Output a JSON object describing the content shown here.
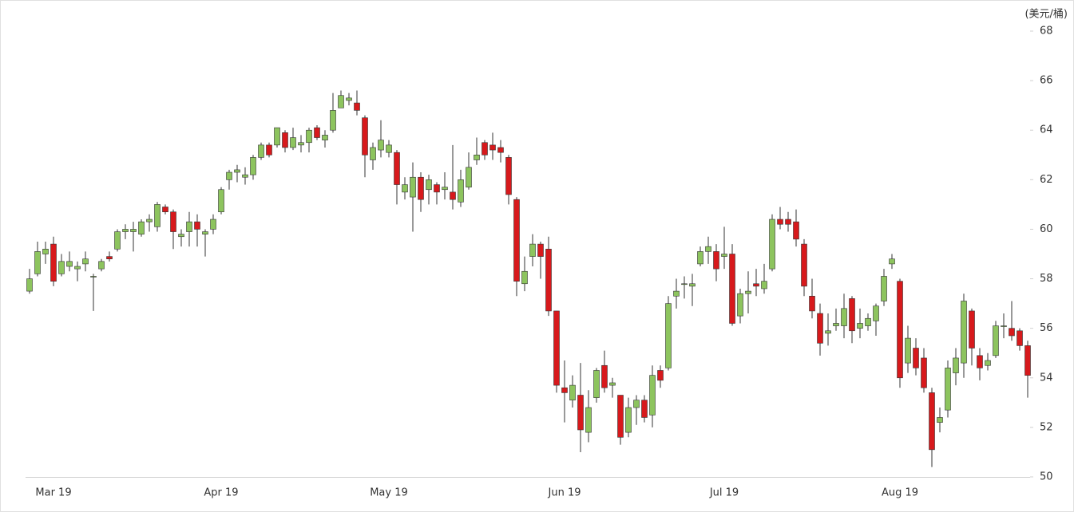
{
  "chart_data": {
    "type": "candlestick",
    "ylabel": "(美元/桶)",
    "categories": [
      null,
      null,
      null,
      "Mar 19",
      null,
      null,
      null,
      null,
      null,
      null,
      null,
      null,
      null,
      null,
      null,
      null,
      null,
      null,
      null,
      null,
      null,
      null,
      null,
      null,
      "Apr 19",
      null,
      null,
      null,
      null,
      null,
      null,
      null,
      null,
      null,
      null,
      null,
      null,
      null,
      null,
      null,
      null,
      null,
      null,
      null,
      null,
      "May 19",
      null,
      null,
      null,
      null,
      null,
      null,
      null,
      null,
      null,
      null,
      null,
      null,
      null,
      null,
      null,
      null,
      null,
      null,
      null,
      null,
      null,
      "Jun 19",
      null,
      null,
      null,
      null,
      null,
      null,
      null,
      null,
      null,
      null,
      null,
      null,
      null,
      null,
      null,
      null,
      null,
      null,
      null,
      "Jul 19",
      null,
      null,
      null,
      null,
      null,
      null,
      null,
      null,
      null,
      null,
      null,
      null,
      null,
      null,
      null,
      null,
      null,
      null,
      null,
      null,
      null,
      "Aug 19",
      null,
      null,
      null,
      null,
      null,
      null,
      null,
      null,
      null,
      null,
      null,
      null,
      null,
      null,
      null,
      null
    ],
    "open": [
      57.5,
      58.2,
      59.0,
      59.4,
      58.2,
      58.5,
      58.4,
      58.6,
      58.1,
      58.4,
      58.9,
      59.2,
      59.9,
      59.9,
      59.8,
      60.3,
      60.1,
      60.9,
      60.7,
      59.7,
      59.9,
      60.3,
      59.8,
      60.0,
      60.7,
      62.0,
      62.3,
      62.1,
      62.2,
      62.9,
      63.4,
      63.4,
      63.9,
      63.3,
      63.4,
      63.5,
      64.1,
      63.6,
      64.0,
      64.9,
      65.2,
      65.1,
      64.5,
      62.8,
      63.2,
      63.1,
      63.1,
      61.5,
      61.3,
      62.1,
      61.6,
      61.8,
      61.6,
      61.5,
      61.1,
      61.7,
      62.8,
      63.5,
      63.4,
      63.3,
      62.9,
      61.2,
      57.8,
      58.9,
      59.4,
      59.2,
      56.7,
      53.6,
      53.1,
      53.3,
      51.8,
      53.2,
      54.5,
      53.7,
      53.3,
      51.8,
      52.8,
      53.1,
      52.5,
      54.3,
      54.4,
      57.3,
      57.8,
      57.7,
      58.6,
      59.1,
      59.1,
      58.9,
      59.0,
      56.5,
      57.4,
      57.8,
      57.6,
      58.4,
      60.4,
      60.4,
      60.3,
      59.4,
      57.3,
      56.6,
      55.8,
      56.1,
      56.1,
      57.2,
      56.0,
      56.1,
      56.3,
      57.1,
      58.6,
      57.9,
      54.6,
      55.2,
      54.8,
      53.4,
      52.2,
      52.7,
      54.2,
      54.6,
      56.7,
      54.9,
      54.5,
      54.9,
      56.1,
      56.0,
      55.9,
      55.3
    ],
    "high": [
      58.4,
      59.5,
      59.5,
      59.7,
      59.0,
      59.1,
      58.7,
      59.1,
      58.2,
      58.8,
      59.1,
      60.0,
      60.2,
      60.3,
      60.4,
      60.6,
      61.1,
      61.0,
      60.8,
      60.0,
      60.7,
      60.6,
      60.0,
      60.6,
      61.7,
      62.4,
      62.6,
      62.5,
      63.0,
      63.5,
      63.5,
      64.1,
      64.0,
      64.1,
      63.8,
      64.1,
      64.2,
      64.0,
      65.5,
      65.6,
      65.5,
      65.6,
      64.6,
      63.5,
      64.4,
      63.6,
      63.2,
      62.1,
      62.7,
      62.3,
      62.2,
      61.9,
      62.3,
      63.4,
      62.4,
      63.1,
      63.7,
      63.6,
      63.9,
      63.6,
      63.0,
      61.3,
      58.9,
      59.8,
      59.5,
      59.7,
      56.7,
      54.7,
      54.1,
      54.6,
      53.5,
      54.4,
      55.1,
      54.0,
      53.3,
      53.2,
      53.3,
      53.3,
      54.5,
      54.5,
      57.3,
      58.0,
      58.1,
      58.2,
      59.3,
      59.7,
      59.4,
      60.1,
      59.4,
      57.6,
      58.3,
      58.4,
      58.6,
      60.6,
      60.9,
      60.7,
      60.8,
      59.6,
      58.0,
      57.0,
      56.6,
      56.8,
      57.4,
      57.3,
      56.8,
      56.6,
      57.0,
      58.4,
      59.0,
      58.0,
      56.1,
      55.6,
      55.2,
      53.6,
      52.8,
      54.7,
      55.2,
      57.4,
      56.8,
      55.2,
      55.0,
      56.3,
      56.6,
      57.1,
      56.0,
      55.5
    ],
    "low": [
      57.4,
      58.1,
      58.6,
      57.7,
      58.1,
      58.3,
      57.9,
      58.3,
      56.7,
      58.3,
      58.7,
      59.1,
      59.6,
      59.1,
      59.7,
      59.9,
      59.9,
      60.6,
      59.2,
      59.3,
      59.3,
      59.3,
      58.9,
      59.8,
      60.6,
      61.6,
      61.9,
      61.8,
      62.0,
      62.8,
      62.9,
      63.3,
      63.1,
      63.2,
      63.1,
      63.1,
      63.6,
      63.3,
      63.9,
      64.9,
      65.0,
      64.6,
      62.1,
      62.4,
      62.9,
      62.9,
      61.0,
      61.2,
      59.9,
      60.7,
      61.0,
      61.0,
      61.2,
      60.8,
      60.9,
      61.6,
      62.6,
      62.8,
      62.8,
      62.7,
      61.0,
      57.3,
      57.5,
      58.5,
      58.0,
      56.5,
      53.4,
      52.2,
      52.8,
      51.0,
      51.4,
      53.0,
      53.4,
      53.2,
      51.3,
      51.6,
      52.1,
      52.2,
      52.0,
      53.6,
      54.3,
      56.8,
      57.2,
      56.9,
      58.5,
      58.6,
      57.9,
      58.4,
      56.1,
      56.2,
      56.6,
      57.3,
      57.4,
      58.3,
      60.0,
      59.9,
      59.3,
      57.3,
      56.4,
      54.9,
      55.3,
      55.9,
      55.6,
      55.4,
      55.6,
      55.9,
      55.7,
      56.9,
      58.4,
      53.6,
      54.2,
      54.1,
      53.4,
      50.4,
      51.8,
      52.4,
      53.7,
      54.0,
      54.5,
      53.9,
      54.3,
      54.8,
      55.6,
      55.5,
      55.1,
      53.2
    ],
    "close": [
      58.0,
      59.1,
      59.2,
      57.9,
      58.7,
      58.7,
      58.5,
      58.8,
      58.1,
      58.7,
      58.8,
      59.9,
      60.0,
      60.0,
      60.3,
      60.4,
      61.0,
      60.7,
      59.9,
      59.8,
      60.3,
      60.0,
      59.9,
      60.4,
      61.6,
      62.3,
      62.4,
      62.2,
      62.9,
      63.4,
      63.0,
      64.1,
      63.3,
      63.7,
      63.5,
      64.0,
      63.7,
      63.8,
      64.8,
      65.4,
      65.3,
      64.8,
      63.0,
      63.3,
      63.6,
      63.4,
      61.8,
      61.8,
      62.1,
      61.2,
      62.0,
      61.5,
      61.7,
      61.2,
      62.0,
      62.5,
      63.0,
      63.0,
      63.2,
      63.1,
      61.4,
      57.9,
      58.3,
      59.4,
      58.9,
      56.7,
      53.7,
      53.4,
      53.7,
      51.9,
      52.8,
      54.3,
      53.6,
      53.8,
      51.6,
      52.8,
      53.1,
      52.4,
      54.1,
      53.9,
      57.0,
      57.5,
      57.8,
      57.8,
      59.1,
      59.3,
      58.4,
      59.0,
      56.2,
      57.4,
      57.5,
      57.7,
      57.9,
      60.4,
      60.2,
      60.2,
      59.6,
      57.7,
      56.7,
      55.4,
      55.9,
      56.2,
      56.8,
      55.9,
      56.2,
      56.4,
      56.9,
      58.1,
      58.8,
      54.0,
      55.6,
      54.4,
      53.6,
      51.1,
      52.4,
      54.4,
      54.8,
      57.1,
      55.2,
      54.4,
      54.7,
      56.1,
      56.1,
      55.7,
      55.3,
      54.1
    ],
    "up_color": "#8dc45e",
    "down_color": "#d7191c",
    "ylim": [
      50,
      68
    ],
    "yticks": [
      50,
      52,
      54,
      56,
      58,
      60,
      62,
      64,
      66,
      68
    ]
  }
}
